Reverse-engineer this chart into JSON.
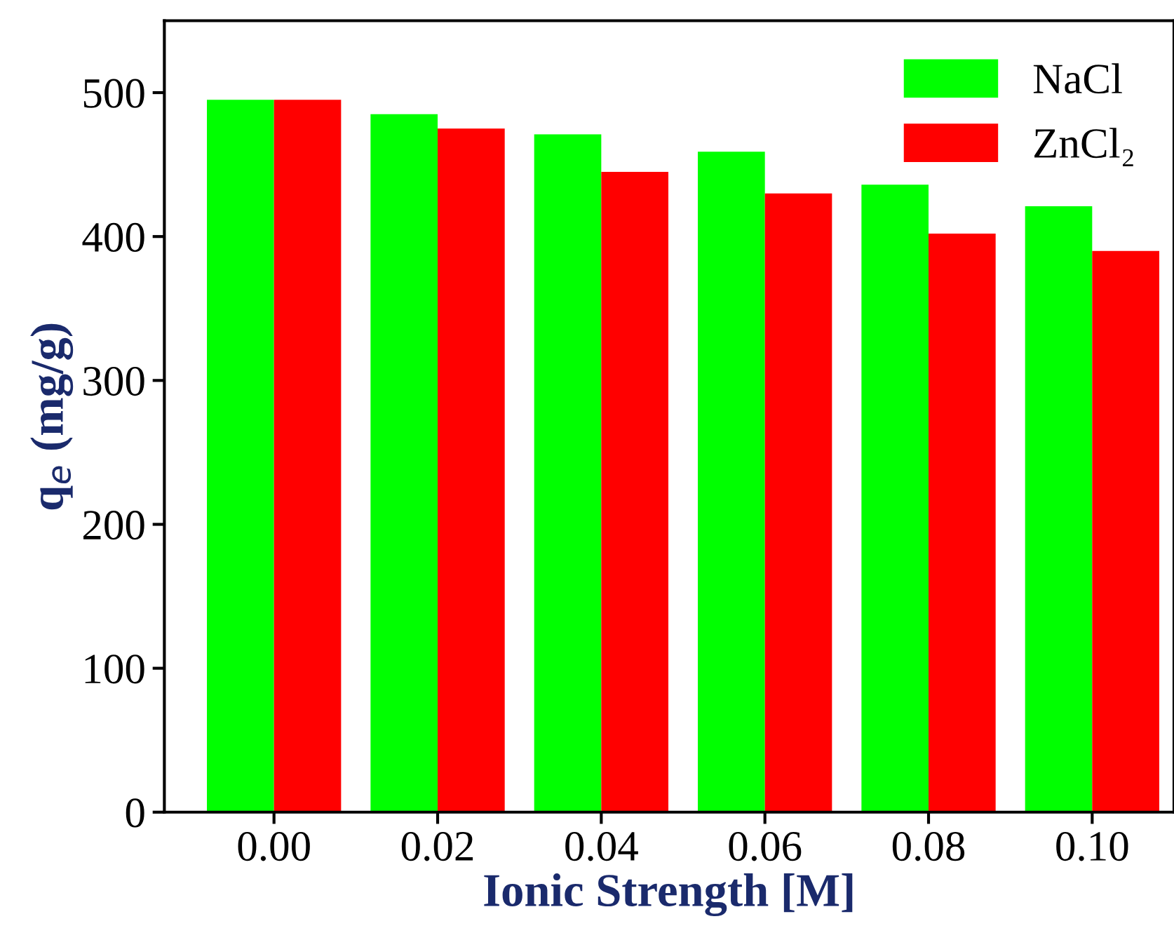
{
  "chart_data": {
    "type": "bar",
    "xlabel": "Ionic Strength [M]",
    "ylabel": "q$_{e}$ (mg/g)",
    "categories": [
      "0.00",
      "0.02",
      "0.04",
      "0.06",
      "0.08",
      "0.10"
    ],
    "series": [
      {
        "name": "NaCl",
        "color": "#00ff00",
        "values": [
          495,
          485,
          471,
          459,
          436,
          421
        ]
      },
      {
        "name": "ZnCl₂",
        "color": "#ff0000",
        "values": [
          495,
          475,
          445,
          430,
          402,
          390
        ]
      }
    ],
    "ylim": [
      0,
      550
    ],
    "yticks": [
      0,
      100,
      200,
      300,
      400,
      500
    ],
    "grid": false,
    "legend": "top right"
  }
}
